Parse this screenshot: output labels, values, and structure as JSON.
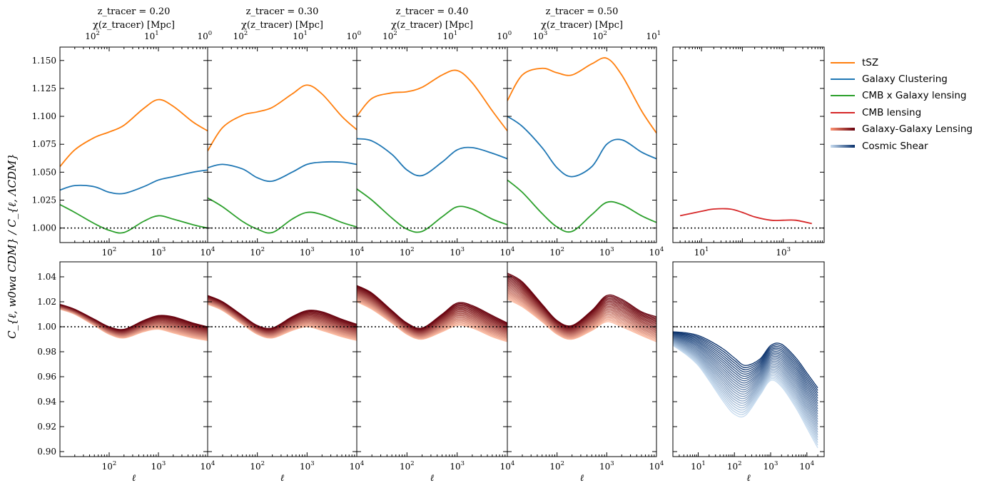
{
  "chart_data": [
    {
      "type": "line",
      "panel": "zt020-top",
      "title_top": "z_tracer = 0.20",
      "secondary_xlabel": "χ(z_tracer) [Mpc]",
      "secondary_ticks": [
        "10^2",
        "10^1",
        "10^0"
      ],
      "xlim": [
        10,
        10000
      ],
      "ylim": [
        0.987,
        1.162
      ],
      "xscale": "log",
      "series": [
        {
          "name": "tSZ",
          "color": "#ff7f0e",
          "x": [
            10,
            20,
            50,
            100,
            200,
            500,
            1000,
            2000,
            5000,
            10000
          ],
          "y": [
            1.055,
            1.07,
            1.081,
            1.086,
            1.092,
            1.107,
            1.115,
            1.109,
            1.095,
            1.087
          ]
        },
        {
          "name": "Galaxy Clustering",
          "color": "#1f77b4",
          "x": [
            10,
            20,
            50,
            100,
            200,
            500,
            1000,
            2000,
            5000,
            10000
          ],
          "y": [
            1.034,
            1.038,
            1.037,
            1.032,
            1.031,
            1.037,
            1.043,
            1.046,
            1.05,
            1.052
          ]
        },
        {
          "name": "CMB x Galaxy lensing",
          "color": "#2ca02c",
          "x": [
            10,
            20,
            50,
            100,
            200,
            500,
            1000,
            2000,
            5000,
            10000
          ],
          "y": [
            1.021,
            1.014,
            1.004,
            0.998,
            0.996,
            1.006,
            1.011,
            1.008,
            1.003,
            1.0
          ]
        }
      ]
    },
    {
      "type": "line",
      "panel": "zt030-top",
      "title_top": "z_tracer = 0.30",
      "secondary_xlabel": "χ(z_tracer) [Mpc]",
      "secondary_ticks": [
        "10^2",
        "10^1",
        "10^0"
      ],
      "xlim": [
        10,
        10000
      ],
      "ylim": [
        0.987,
        1.162
      ],
      "xscale": "log",
      "series": [
        {
          "name": "tSZ",
          "color": "#ff7f0e",
          "x": [
            10,
            20,
            50,
            100,
            200,
            500,
            1000,
            2000,
            5000,
            10000
          ],
          "y": [
            1.069,
            1.09,
            1.101,
            1.104,
            1.108,
            1.12,
            1.128,
            1.12,
            1.1,
            1.088
          ]
        },
        {
          "name": "Galaxy Clustering",
          "color": "#1f77b4",
          "x": [
            10,
            20,
            50,
            100,
            200,
            500,
            1000,
            2000,
            5000,
            10000
          ],
          "y": [
            1.054,
            1.057,
            1.053,
            1.045,
            1.042,
            1.05,
            1.057,
            1.059,
            1.059,
            1.057
          ]
        },
        {
          "name": "CMB x Galaxy lensing",
          "color": "#2ca02c",
          "x": [
            10,
            20,
            50,
            100,
            200,
            500,
            1000,
            2000,
            5000,
            10000
          ],
          "y": [
            1.027,
            1.019,
            1.006,
            0.999,
            0.996,
            1.008,
            1.014,
            1.012,
            1.005,
            1.001
          ]
        }
      ]
    },
    {
      "type": "line",
      "panel": "zt040-top",
      "title_top": "z_tracer = 0.40",
      "secondary_xlabel": "χ(z_tracer) [Mpc]",
      "secondary_ticks": [
        "10^2",
        "10^1",
        "10^0"
      ],
      "xlim": [
        10,
        10000
      ],
      "ylim": [
        0.987,
        1.162
      ],
      "xscale": "log",
      "series": [
        {
          "name": "tSZ",
          "color": "#ff7f0e",
          "x": [
            10,
            20,
            50,
            100,
            200,
            500,
            1000,
            2000,
            5000,
            10000
          ],
          "y": [
            1.1,
            1.116,
            1.121,
            1.122,
            1.126,
            1.137,
            1.141,
            1.13,
            1.105,
            1.087
          ]
        },
        {
          "name": "Galaxy Clustering",
          "color": "#1f77b4",
          "x": [
            10,
            20,
            50,
            100,
            200,
            500,
            1000,
            2000,
            5000,
            10000
          ],
          "y": [
            1.08,
            1.078,
            1.066,
            1.052,
            1.047,
            1.059,
            1.07,
            1.072,
            1.067,
            1.062
          ]
        },
        {
          "name": "CMB x Galaxy lensing",
          "color": "#2ca02c",
          "x": [
            10,
            20,
            50,
            100,
            200,
            500,
            1000,
            2000,
            5000,
            10000
          ],
          "y": [
            1.035,
            1.025,
            1.009,
            0.999,
            0.997,
            1.01,
            1.019,
            1.017,
            1.008,
            1.003
          ]
        }
      ]
    },
    {
      "type": "line",
      "panel": "zt050-top",
      "title_top": "z_tracer = 0.50",
      "secondary_xlabel": "χ(z_tracer) [Mpc]",
      "secondary_ticks": [
        "10^3",
        "10^2",
        "10^1"
      ],
      "xlim": [
        10,
        10000
      ],
      "ylim": [
        0.987,
        1.162
      ],
      "xscale": "log",
      "series": [
        {
          "name": "tSZ",
          "color": "#ff7f0e",
          "x": [
            10,
            20,
            50,
            100,
            200,
            500,
            1000,
            2000,
            5000,
            10000
          ],
          "y": [
            1.114,
            1.137,
            1.143,
            1.139,
            1.137,
            1.147,
            1.152,
            1.137,
            1.105,
            1.085
          ]
        },
        {
          "name": "Galaxy Clustering",
          "color": "#1f77b4",
          "x": [
            10,
            20,
            50,
            100,
            200,
            500,
            1000,
            2000,
            5000,
            10000
          ],
          "y": [
            1.1,
            1.091,
            1.072,
            1.054,
            1.046,
            1.055,
            1.075,
            1.079,
            1.068,
            1.062
          ]
        },
        {
          "name": "CMB x Galaxy lensing",
          "color": "#2ca02c",
          "x": [
            10,
            20,
            50,
            100,
            200,
            500,
            1000,
            2000,
            5000,
            10000
          ],
          "y": [
            1.043,
            1.032,
            1.013,
            1.001,
            0.997,
            1.012,
            1.023,
            1.021,
            1.011,
            1.005
          ]
        }
      ]
    },
    {
      "type": "line",
      "panel": "cmb-top",
      "xlim": [
        2,
        10000
      ],
      "ylim": [
        0.987,
        1.162
      ],
      "xscale": "log",
      "series": [
        {
          "name": "CMB lensing",
          "color": "#d62728",
          "x": [
            3,
            10,
            20,
            50,
            100,
            200,
            500,
            1000,
            2000,
            5000
          ],
          "y": [
            1.011,
            1.015,
            1.017,
            1.017,
            1.014,
            1.01,
            1.007,
            1.007,
            1.007,
            1.004
          ]
        }
      ]
    },
    {
      "type": "line",
      "panel": "zt020-bottom",
      "xlabel": "ℓ",
      "xlim": [
        10,
        10000
      ],
      "ylim": [
        0.896,
        1.052
      ],
      "xscale": "log",
      "series": [
        {
          "name": "Galaxy-Galaxy Lensing",
          "colormap": "Reds",
          "n_curves": 22,
          "x": [
            10,
            20,
            50,
            100,
            200,
            500,
            1000,
            2000,
            5000,
            10000
          ],
          "y_upper": [
            1.018,
            1.014,
            1.006,
            1.0,
            0.998,
            1.005,
            1.009,
            1.008,
            1.003,
            1.0
          ],
          "y_lower": [
            1.014,
            1.01,
            1.001,
            0.994,
            0.991,
            0.996,
            0.998,
            0.995,
            0.991,
            0.989
          ]
        }
      ]
    },
    {
      "type": "line",
      "panel": "zt030-bottom",
      "xlabel": "ℓ",
      "xlim": [
        10,
        10000
      ],
      "ylim": [
        0.896,
        1.052
      ],
      "xscale": "log",
      "series": [
        {
          "name": "Galaxy-Galaxy Lensing",
          "colormap": "Reds",
          "n_curves": 22,
          "x": [
            10,
            20,
            50,
            100,
            200,
            500,
            1000,
            2000,
            5000,
            10000
          ],
          "y_upper": [
            1.025,
            1.02,
            1.009,
            1.001,
            0.999,
            1.008,
            1.013,
            1.012,
            1.006,
            1.002
          ],
          "y_lower": [
            1.018,
            1.013,
            1.002,
            0.994,
            0.991,
            0.997,
            1.0,
            0.997,
            0.992,
            0.989
          ]
        }
      ]
    },
    {
      "type": "line",
      "panel": "zt040-bottom",
      "xlabel": "ℓ",
      "xlim": [
        10,
        10000
      ],
      "ylim": [
        0.896,
        1.052
      ],
      "xscale": "log",
      "series": [
        {
          "name": "Galaxy-Galaxy Lensing",
          "colormap": "Reds",
          "n_curves": 22,
          "x": [
            10,
            20,
            50,
            100,
            200,
            500,
            1000,
            2000,
            5000,
            10000
          ],
          "y_upper": [
            1.033,
            1.027,
            1.013,
            1.003,
            0.999,
            1.01,
            1.019,
            1.017,
            1.009,
            1.003
          ],
          "y_lower": [
            1.02,
            1.014,
            1.003,
            0.994,
            0.99,
            0.996,
            1.001,
            0.999,
            0.992,
            0.988
          ]
        }
      ]
    },
    {
      "type": "line",
      "panel": "zt050-bottom",
      "xlabel": "ℓ",
      "xlim": [
        10,
        10000
      ],
      "ylim": [
        0.896,
        1.052
      ],
      "xscale": "log",
      "series": [
        {
          "name": "Galaxy-Galaxy Lensing",
          "colormap": "Reds",
          "n_curves": 22,
          "x": [
            10,
            20,
            50,
            100,
            200,
            500,
            1000,
            2000,
            5000,
            10000
          ],
          "y_upper": [
            1.043,
            1.036,
            1.018,
            1.005,
            1.001,
            1.013,
            1.025,
            1.022,
            1.012,
            1.008
          ],
          "y_lower": [
            1.022,
            1.016,
            1.004,
            0.994,
            0.99,
            0.997,
            1.004,
            1.0,
            0.993,
            0.988
          ]
        }
      ]
    },
    {
      "type": "line",
      "panel": "shear-bottom",
      "xlabel": "ℓ",
      "xlim": [
        2,
        30000
      ],
      "ylim": [
        0.896,
        1.052
      ],
      "xscale": "log",
      "series": [
        {
          "name": "Cosmic Shear",
          "colormap": "Blues",
          "n_curves": 24,
          "x": [
            2,
            5,
            10,
            20,
            50,
            100,
            200,
            500,
            1000,
            2000,
            5000,
            10000,
            20000
          ],
          "y_upper": [
            0.996,
            0.995,
            0.993,
            0.989,
            0.982,
            0.975,
            0.969,
            0.974,
            0.985,
            0.986,
            0.975,
            0.963,
            0.951
          ],
          "y_lower": [
            0.985,
            0.977,
            0.969,
            0.957,
            0.94,
            0.93,
            0.929,
            0.945,
            0.957,
            0.952,
            0.935,
            0.919,
            0.903
          ]
        }
      ]
    }
  ],
  "axes": {
    "ylabel": "C_{ℓ, w0wa CDM} / C_{ℓ, ΛCDM}",
    "xlabel": "ℓ",
    "secondary_xlabel": "χ(z_tracer) [Mpc]",
    "top_yticks": [
      "1.000",
      "1.025",
      "1.050",
      "1.075",
      "1.100",
      "1.125",
      "1.150"
    ],
    "bottom_yticks": [
      "0.90",
      "0.92",
      "0.94",
      "0.96",
      "0.98",
      "1.00",
      "1.02",
      "1.04"
    ],
    "reference_line": 1.0
  },
  "legend": {
    "placement": "right",
    "items": [
      {
        "label": "tSZ",
        "color": "#ff7f0e",
        "kind": "line"
      },
      {
        "label": "Galaxy Clustering",
        "color": "#1f77b4",
        "kind": "line"
      },
      {
        "label": "CMB x Galaxy lensing",
        "color": "#2ca02c",
        "kind": "line"
      },
      {
        "label": "CMB lensing",
        "color": "#d62728",
        "kind": "line"
      },
      {
        "label": "Galaxy-Galaxy Lensing",
        "color": "#fc9272",
        "color_end": "#67000d",
        "kind": "gradient"
      },
      {
        "label": "Cosmic Shear",
        "color": "#c6dbef",
        "color_end": "#08306b",
        "kind": "gradient"
      }
    ]
  }
}
